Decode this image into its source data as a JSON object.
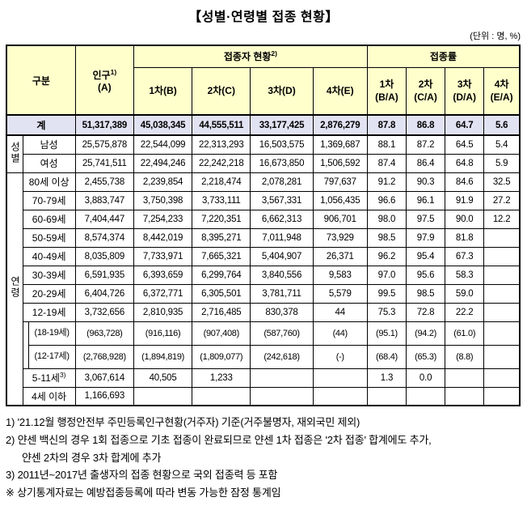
{
  "page": {
    "title": "【성별·연령별 접종 현황】",
    "unit_note": "(단위 : 명, %)"
  },
  "colors": {
    "header_bg": "#FFFFCC",
    "total_row_bg": "#E1E2F2",
    "border": "#000000"
  },
  "header": {
    "gubun": "구분",
    "population_label": "인구",
    "population_sup": "1)",
    "population_code": "(A)",
    "vaccinated_group_label": "접종자 현황",
    "vaccinated_group_sup": "2)",
    "rate_group_label": "접종률",
    "dose_cols": [
      "1차(B)",
      "2차(C)",
      "3차(D)",
      "4차(E)"
    ],
    "rate_cols": [
      "1차\n(B/A)",
      "2차\n(C/A)",
      "3차\n(D/A)",
      "4차\n(E/A)"
    ]
  },
  "summary_row": {
    "label": "계",
    "values": [
      "51,317,389",
      "45,038,345",
      "44,555,511",
      "33,177,425",
      "2,876,279",
      "87.8",
      "86.8",
      "64.7",
      "5.6"
    ]
  },
  "gender_group": {
    "label": "성별",
    "rows": [
      {
        "label": "남성",
        "values": [
          "25,575,878",
          "22,544,099",
          "22,313,293",
          "16,503,575",
          "1,369,687",
          "88.1",
          "87.2",
          "64.5",
          "5.4"
        ]
      },
      {
        "label": "여성",
        "values": [
          "25,741,511",
          "22,494,246",
          "22,242,218",
          "16,673,850",
          "1,506,592",
          "87.4",
          "86.4",
          "64.8",
          "5.9"
        ]
      }
    ]
  },
  "age_group": {
    "label": "연령",
    "rows": [
      {
        "label": "80세 이상",
        "values": [
          "2,455,738",
          "2,239,854",
          "2,218,474",
          "2,078,281",
          "797,637",
          "91.2",
          "90.3",
          "84.6",
          "32.5"
        ]
      },
      {
        "label": "70-79세",
        "values": [
          "3,883,747",
          "3,750,398",
          "3,733,111",
          "3,567,331",
          "1,056,435",
          "96.6",
          "96.1",
          "91.9",
          "27.2"
        ]
      },
      {
        "label": "60-69세",
        "values": [
          "7,404,447",
          "7,254,233",
          "7,220,351",
          "6,662,313",
          "906,701",
          "98.0",
          "97.5",
          "90.0",
          "12.2"
        ]
      },
      {
        "label": "50-59세",
        "values": [
          "8,574,374",
          "8,442,019",
          "8,395,271",
          "7,011,948",
          "73,929",
          "98.5",
          "97.9",
          "81.8",
          ""
        ]
      },
      {
        "label": "40-49세",
        "values": [
          "8,035,809",
          "7,733,971",
          "7,665,321",
          "5,404,907",
          "26,371",
          "96.2",
          "95.4",
          "67.3",
          ""
        ]
      },
      {
        "label": "30-39세",
        "values": [
          "6,591,935",
          "6,393,659",
          "6,299,764",
          "3,840,556",
          "9,583",
          "97.0",
          "95.6",
          "58.3",
          ""
        ]
      },
      {
        "label": "20-29세",
        "values": [
          "6,404,726",
          "6,372,771",
          "6,305,501",
          "3,781,711",
          "5,579",
          "99.5",
          "98.5",
          "59.0",
          ""
        ]
      },
      {
        "label": "12-19세",
        "values": [
          "3,732,656",
          "2,810,935",
          "2,716,485",
          "830,378",
          "44",
          "75.3",
          "72.8",
          "22.2",
          ""
        ]
      },
      {
        "label": "(18-19세)",
        "indent": true,
        "values": [
          "(963,728)",
          "(916,116)",
          "(907,408)",
          "(587,760)",
          "(44)",
          "(95.1)",
          "(94.2)",
          "(61.0)",
          ""
        ]
      },
      {
        "label": "(12-17세)",
        "indent": true,
        "values": [
          "(2,768,928)",
          "(1,894,819)",
          "(1,809,077)",
          "(242,618)",
          "(-)",
          "(68.4)",
          "(65.3)",
          "(8.8)",
          ""
        ]
      },
      {
        "label": "5-11세",
        "label_sup": "3)",
        "values": [
          "3,067,614",
          "40,505",
          "1,233",
          "",
          "",
          "1.3",
          "0.0",
          "",
          ""
        ]
      },
      {
        "label": "4세 이하",
        "values": [
          "1,166,693",
          "",
          "",
          "",
          "",
          "",
          "",
          "",
          ""
        ]
      }
    ]
  },
  "footnotes": [
    "1) '21.12월 행정안전부 주민등록인구현황(거주자) 기준(거주불명자, 재외국민 제외)",
    "2) 얀센 백신의 경우 1회 접종으로 기초 접종이 완료되므로 얀센 1차 접종은 '2차 접종' 합계에도 추가,\n얀센 2차의 경우 3차 합계에 추가",
    "3) 2011년~2017년 출생자의 접종 현황으로 국외 접종력 등 포함",
    "※ 상기통계자료는 예방접종등록에 따라 변동 가능한 잠정 통계임"
  ]
}
